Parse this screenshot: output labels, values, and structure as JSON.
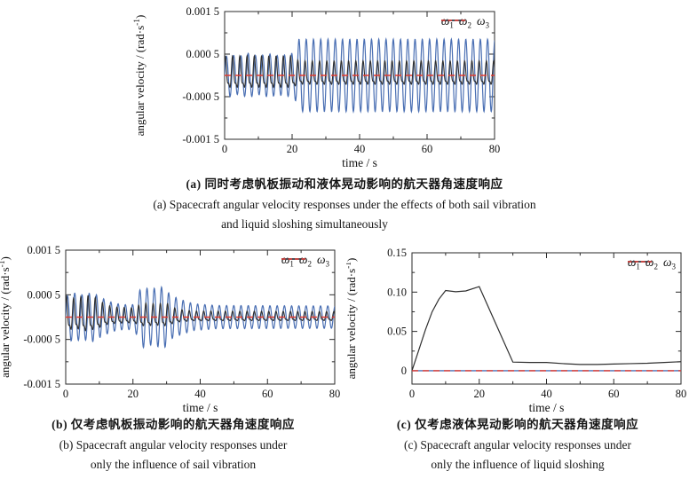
{
  "captions": {
    "a": {
      "zh": "(a) 同时考虑帆板振动和液体晃动影响的航天器角速度响应",
      "en_line1": "(a) Spacecraft angular velocity responses under the effects of both sail vibration",
      "en_line2": "and liquid sloshing simultaneously"
    },
    "b": {
      "zh": "(b) 仅考虑帆板振动影响的航天器角速度响应",
      "en_line1": "(b) Spacecraft angular velocity responses under",
      "en_line2": "only the influence of sail vibration"
    },
    "c": {
      "zh": "(c) 仅考虑液体晃动影响的航天器角速度响应",
      "en_line1": "(c) Spacecraft angular velocity responses under",
      "en_line2": "only the influence of liquid sloshing"
    }
  },
  "axis_labels": {
    "y_prefix": "angular velocity / (rad·s",
    "y_sup": "-1",
    "y_suffix": ")",
    "x": "time / s"
  },
  "colors": {
    "omega1": "#4a6fb3",
    "omega2": "#2f2f2f",
    "omega3": "#e23b31",
    "axis": "#2a2a2a",
    "text": "#111111"
  },
  "chart_data": [
    {
      "id": "a",
      "type": "line",
      "xlabel": "time / s",
      "ylabel": "angular velocity / (rad·s⁻¹)",
      "xlim": [
        0,
        80
      ],
      "ylim": [
        -0.0015,
        0.0015
      ],
      "xticks": [
        {
          "v": 0,
          "label": "0"
        },
        {
          "v": 20,
          "label": "20"
        },
        {
          "v": 40,
          "label": "40"
        },
        {
          "v": 60,
          "label": "60"
        },
        {
          "v": 80,
          "label": "80"
        }
      ],
      "xminor": [
        10,
        30,
        50,
        70
      ],
      "yticks": [
        {
          "v": 0.0015,
          "label": "0.001 5"
        },
        {
          "v": 0.0005,
          "label": "0.000 5"
        },
        {
          "v": -0.0005,
          "label": "-0.000 5"
        },
        {
          "v": -0.0015,
          "label": "-0.001 5"
        }
      ],
      "yminor": [
        0.001,
        0,
        -0.001
      ],
      "legend_position": "top-right",
      "series": [
        {
          "name": "omega1",
          "label_base": "ω",
          "label_sub": "1",
          "color": "#4a6fb3",
          "width": 1.2,
          "kind": "oscillation",
          "period": 2.15,
          "phase": 0,
          "envelope": [
            [
              0,
              0.00042
            ],
            [
              1.5,
              0.0005
            ],
            [
              4,
              0.00044
            ],
            [
              7,
              0.00052
            ],
            [
              10,
              0.00045
            ],
            [
              13,
              0.00051
            ],
            [
              16,
              0.00046
            ],
            [
              19.5,
              0.0005
            ],
            [
              20.8,
              0.00055
            ],
            [
              22,
              0.00085
            ],
            [
              80,
              0.00085
            ]
          ]
        },
        {
          "name": "omega2",
          "label_base": "ω",
          "label_sub": "2",
          "color": "#2f2f2f",
          "width": 1.1,
          "kind": "oscillation",
          "period": 2.15,
          "phase": 0.9,
          "harmonic2": 0.4,
          "envelope": [
            [
              0,
              0.0004
            ],
            [
              20,
              0.0004
            ],
            [
              22,
              0.0003
            ],
            [
              80,
              0.0003
            ]
          ]
        },
        {
          "name": "omega3",
          "label_base": "ω",
          "label_sub": "3",
          "color": "#e23b31",
          "width": 1.4,
          "kind": "polyline",
          "dash": "7,5",
          "points": [
            [
              0,
              0
            ],
            [
              80,
              0
            ]
          ]
        }
      ]
    },
    {
      "id": "b",
      "type": "line",
      "xlabel": "time / s",
      "ylabel": "angular velocity / (rad·s⁻¹)",
      "xlim": [
        0,
        80
      ],
      "ylim": [
        -0.0015,
        0.0015
      ],
      "xticks": [
        {
          "v": 0,
          "label": "0"
        },
        {
          "v": 20,
          "label": "20"
        },
        {
          "v": 40,
          "label": "40"
        },
        {
          "v": 60,
          "label": "60"
        },
        {
          "v": 80,
          "label": "80"
        }
      ],
      "xminor": [
        10,
        30,
        50,
        70
      ],
      "yticks": [
        {
          "v": 0.0015,
          "label": "0.001 5"
        },
        {
          "v": 0.0005,
          "label": "0.000 5"
        },
        {
          "v": -0.0005,
          "label": "-0.000 5"
        },
        {
          "v": -0.0015,
          "label": "-0.001 5"
        }
      ],
      "yminor": [
        0.001,
        0,
        -0.001
      ],
      "legend_position": "top-right",
      "series": [
        {
          "name": "omega1",
          "label_base": "ω",
          "label_sub": "1",
          "color": "#4a6fb3",
          "width": 1.2,
          "kind": "oscillation",
          "period": 2.15,
          "phase": 0,
          "envelope": [
            [
              0,
              0.00045
            ],
            [
              2,
              0.00055
            ],
            [
              5,
              0.0005
            ],
            [
              8,
              0.00055
            ],
            [
              11,
              0.00042
            ],
            [
              14,
              0.00032
            ],
            [
              17,
              0.00028
            ],
            [
              20.5,
              0.00028
            ],
            [
              22.5,
              0.0007
            ],
            [
              25,
              0.00062
            ],
            [
              27,
              0.00066
            ],
            [
              29.5,
              0.00068
            ],
            [
              31,
              0.0005
            ],
            [
              34,
              0.0004
            ],
            [
              38,
              0.0003
            ],
            [
              45,
              0.00026
            ],
            [
              80,
              0.00025
            ]
          ]
        },
        {
          "name": "omega2",
          "label_base": "ω",
          "label_sub": "2",
          "color": "#2f2f2f",
          "width": 1.1,
          "kind": "oscillation",
          "period": 2.15,
          "phase": 0.9,
          "harmonic2": 0.4,
          "envelope": [
            [
              0,
              0.00042
            ],
            [
              3,
              0.00036
            ],
            [
              6,
              0.00044
            ],
            [
              9,
              0.00038
            ],
            [
              12,
              0.00024
            ],
            [
              15,
              0.0002
            ],
            [
              20,
              0.00018
            ],
            [
              23,
              0.00028
            ],
            [
              27,
              0.00026
            ],
            [
              30,
              0.00028
            ],
            [
              33,
              0.00016
            ],
            [
              38,
              0.00012
            ],
            [
              80,
              0.00011
            ]
          ]
        },
        {
          "name": "omega3",
          "label_base": "ω",
          "label_sub": "3",
          "color": "#e23b31",
          "width": 1.4,
          "kind": "polyline",
          "dash": "7,5",
          "points": [
            [
              0,
              0
            ],
            [
              80,
              0
            ]
          ]
        }
      ]
    },
    {
      "id": "c",
      "type": "line",
      "xlabel": "time / s",
      "ylabel": "angular velocity / (rad·s⁻¹)",
      "xlim": [
        0,
        80
      ],
      "ylim": [
        -0.017,
        0.15
      ],
      "xticks": [
        {
          "v": 0,
          "label": "0"
        },
        {
          "v": 20,
          "label": "20"
        },
        {
          "v": 40,
          "label": "40"
        },
        {
          "v": 60,
          "label": "60"
        },
        {
          "v": 80,
          "label": "80"
        }
      ],
      "xminor": [
        10,
        30,
        50,
        70
      ],
      "yticks": [
        {
          "v": 0.15,
          "label": "0.15"
        },
        {
          "v": 0.1,
          "label": "0.10"
        },
        {
          "v": 0.05,
          "label": "0.05"
        },
        {
          "v": 0,
          "label": "0"
        }
      ],
      "yminor": [
        0.125,
        0.075,
        0.025
      ],
      "legend_position": "top-right",
      "series": [
        {
          "name": "omega1",
          "label_base": "ω",
          "label_sub": "1",
          "color": "#4a6fb3",
          "width": 1.3,
          "kind": "polyline",
          "points": [
            [
              0,
              0
            ],
            [
              80,
              0
            ]
          ]
        },
        {
          "name": "omega2",
          "label_base": "ω",
          "label_sub": "2",
          "color": "#2f2f2f",
          "width": 1.2,
          "kind": "polyline",
          "points": [
            [
              0,
              0
            ],
            [
              2,
              0.026
            ],
            [
              4,
              0.052
            ],
            [
              6,
              0.075
            ],
            [
              8,
              0.091
            ],
            [
              10,
              0.102
            ],
            [
              13,
              0.1005
            ],
            [
              16,
              0.1015
            ],
            [
              20,
              0.107
            ],
            [
              30,
              0.011
            ],
            [
              35,
              0.0105
            ],
            [
              40,
              0.0105
            ],
            [
              45,
              0.009
            ],
            [
              50,
              0.008
            ],
            [
              55,
              0.008
            ],
            [
              60,
              0.0085
            ],
            [
              65,
              0.009
            ],
            [
              70,
              0.0095
            ],
            [
              75,
              0.0105
            ],
            [
              80,
              0.0115
            ]
          ]
        },
        {
          "name": "omega3",
          "label_base": "ω",
          "label_sub": "3",
          "color": "#e23b31",
          "width": 1.4,
          "kind": "polyline",
          "dash": "7,5",
          "points": [
            [
              0,
              0
            ],
            [
              80,
              0
            ]
          ]
        }
      ]
    }
  ]
}
